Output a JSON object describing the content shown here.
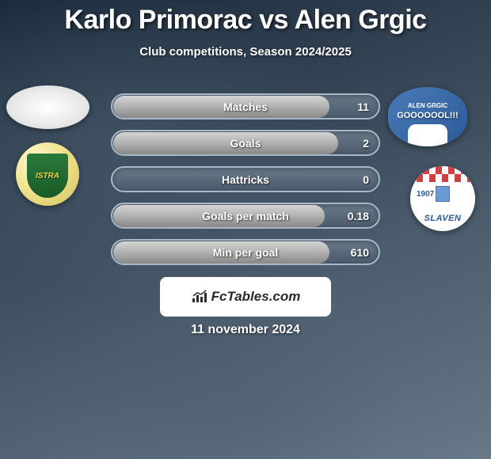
{
  "title": "Karlo Primorac vs Alen Grgic",
  "subtitle": "Club competitions, Season 2024/2025",
  "date": "11 november 2024",
  "brand": "FcTables.com",
  "player_right": {
    "name_label": "ALEN GRGIC",
    "text": "GOOOOOOL!!!"
  },
  "club_left": {
    "name": "ISTRA"
  },
  "club_right": {
    "year": "1907",
    "name": "SLAVEN"
  },
  "stats": [
    {
      "label": "Matches",
      "value": "11",
      "fill_pct": 82
    },
    {
      "label": "Goals",
      "value": "2",
      "fill_pct": 85
    },
    {
      "label": "Hattricks",
      "value": "0",
      "fill_pct": 0
    },
    {
      "label": "Goals per match",
      "value": "0.18",
      "fill_pct": 80
    },
    {
      "label": "Min per goal",
      "value": "610",
      "fill_pct": 82
    }
  ],
  "colors": {
    "bar_border": "#a8b8c8",
    "bar_fill_top": "#d4d4d4",
    "bar_fill_bottom": "#888888",
    "text": "#ffffff"
  }
}
